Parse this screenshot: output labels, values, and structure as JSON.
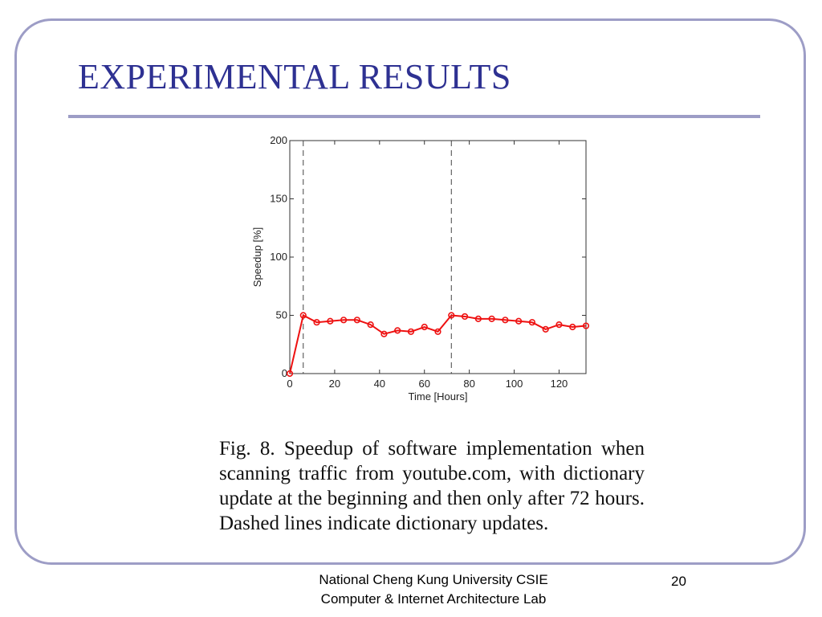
{
  "slide": {
    "title": "EXPERIMENTAL RESULTS",
    "caption": "Fig. 8.    Speedup of software implementation when scanning traffic from youtube.com, with dictionary update at the beginning and then only after 72 hours. Dashed lines indicate dictionary updates.",
    "footer_line1": "National Cheng Kung University CSIE",
    "footer_line2": "Computer & Internet Architecture Lab",
    "page_number": "20"
  },
  "chart_data": {
    "type": "line",
    "title": "",
    "xlabel": "Time [Hours]",
    "ylabel": "Speedup [%]",
    "xlim": [
      0,
      132
    ],
    "ylim": [
      0,
      200
    ],
    "xticks": [
      0,
      20,
      40,
      60,
      80,
      100,
      120
    ],
    "yticks": [
      0,
      50,
      100,
      150,
      200
    ],
    "grid": false,
    "series_color": "#ee1111",
    "marker": "circle",
    "vlines": [
      6,
      72
    ],
    "series": [
      {
        "x": [
          0,
          6,
          12,
          18,
          24,
          30,
          36,
          42,
          48,
          54,
          60,
          66,
          72,
          78,
          84,
          90,
          96,
          102,
          108,
          114,
          120,
          126,
          132
        ],
        "values": [
          0,
          50,
          44,
          45,
          46,
          46,
          42,
          34,
          37,
          36,
          40,
          36,
          50,
          49,
          47,
          47,
          46,
          45,
          44,
          38,
          42,
          40,
          41
        ]
      }
    ]
  }
}
